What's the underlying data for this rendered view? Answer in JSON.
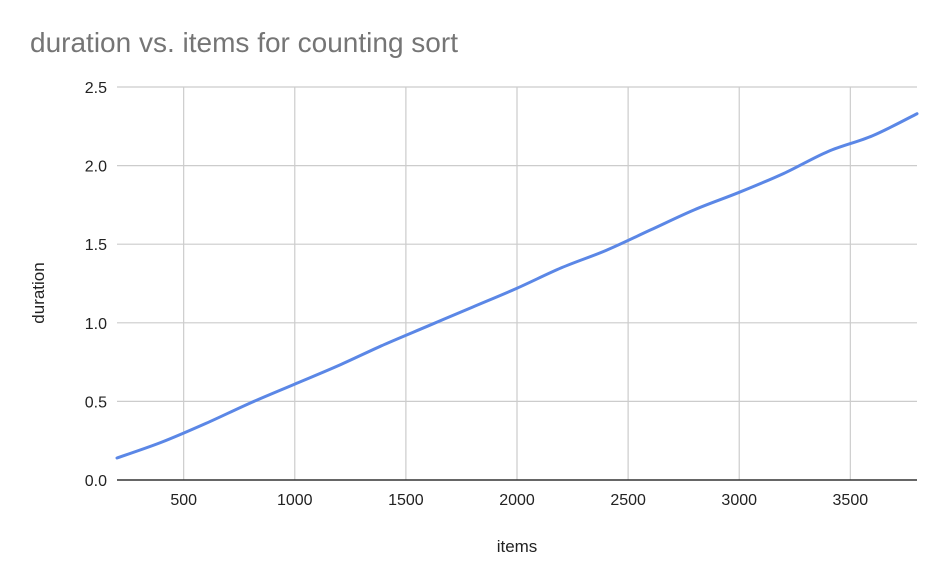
{
  "chart_data": {
    "type": "line",
    "title": "duration vs. items for counting sort",
    "xlabel": "items",
    "ylabel": "duration",
    "xlim": [
      200,
      3800
    ],
    "ylim": [
      0,
      2.5
    ],
    "xticks": [
      500,
      1000,
      1500,
      2000,
      2500,
      3000,
      3500
    ],
    "xtick_labels": [
      "500",
      "1000",
      "1500",
      "2000",
      "2500",
      "3000",
      "3500"
    ],
    "yticks": [
      0,
      0.5,
      1,
      1.5,
      2,
      2.5
    ],
    "ytick_labels": [
      "0.0",
      "0.5",
      "1.0",
      "1.5",
      "2.0",
      "2.5"
    ],
    "grid": true,
    "legend": "none",
    "series": [
      {
        "color": "#5b87e6",
        "x": [
          200,
          400,
          600,
          800,
          1000,
          1200,
          1400,
          1600,
          1800,
          2000,
          2200,
          2400,
          2600,
          2800,
          3000,
          3200,
          3400,
          3600,
          3800
        ],
        "y": [
          0.14,
          0.24,
          0.36,
          0.49,
          0.61,
          0.73,
          0.86,
          0.98,
          1.1,
          1.22,
          1.35,
          1.46,
          1.59,
          1.72,
          1.83,
          1.95,
          2.09,
          2.19,
          2.33
        ]
      }
    ]
  }
}
